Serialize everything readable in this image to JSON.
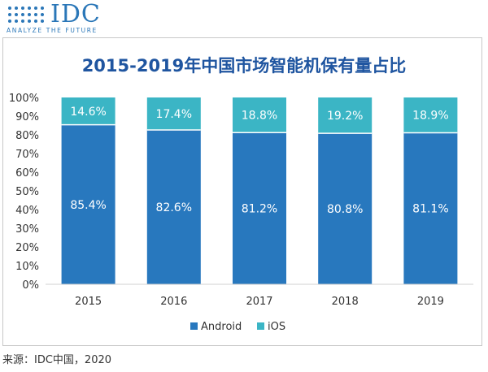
{
  "logo": {
    "wordmark": "IDC",
    "tagline": "ANALYZE THE FUTURE",
    "color": "#2b77b8"
  },
  "chart_data": {
    "type": "bar",
    "stacked": true,
    "title": "2015-2019年中国市场智能机保有量占比",
    "categories": [
      "2015",
      "2016",
      "2017",
      "2018",
      "2019"
    ],
    "series": [
      {
        "name": "Android",
        "color": "#2878be",
        "values": [
          85.4,
          82.6,
          81.2,
          80.8,
          81.1
        ],
        "labels": [
          "85.4%",
          "82.6%",
          "81.2%",
          "80.8%",
          "81.1%"
        ]
      },
      {
        "name": "iOS",
        "color": "#3bb5c5",
        "values": [
          14.6,
          17.4,
          18.8,
          19.2,
          18.9
        ],
        "labels": [
          "14.6%",
          "17.4%",
          "18.8%",
          "19.2%",
          "18.9%"
        ]
      }
    ],
    "ylim": [
      0,
      100
    ],
    "y_ticks": [
      "0%",
      "10%",
      "20%",
      "30%",
      "40%",
      "50%",
      "60%",
      "70%",
      "80%",
      "90%",
      "100%"
    ],
    "xlabel": "",
    "ylabel": "",
    "grid": false,
    "legend_position": "bottom"
  },
  "source": "来源：IDC中国，2020"
}
